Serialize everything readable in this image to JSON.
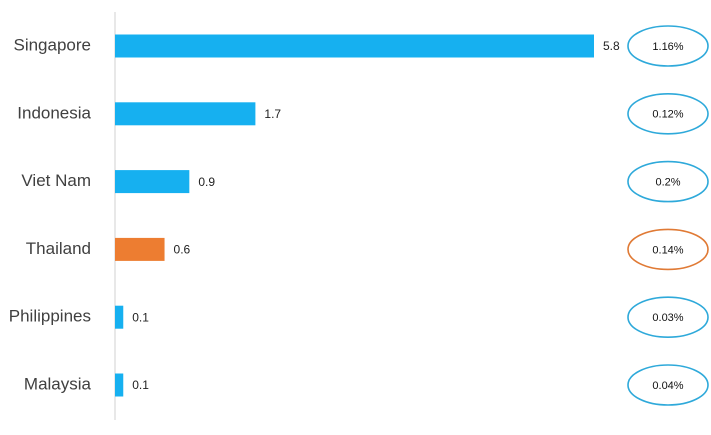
{
  "chart_data": {
    "type": "bar",
    "orientation": "horizontal",
    "categories": [
      "Singapore",
      "Indonesia",
      "Viet Nam",
      "Thailand",
      "Philippines",
      "Malaysia"
    ],
    "values": [
      5.8,
      1.7,
      0.9,
      0.6,
      0.1,
      0.1
    ],
    "colors": [
      "#16b0f0",
      "#16b0f0",
      "#16b0f0",
      "#ed7d31",
      "#16b0f0",
      "#16b0f0"
    ],
    "annotations": [
      "1.16%",
      "0.12%",
      "0.2%",
      "0.14%",
      "0.03%",
      "0.04%"
    ],
    "annotation_colors": [
      "#2ea9da",
      "#2ea9da",
      "#2ea9da",
      "#e07a35",
      "#2ea9da",
      "#2ea9da"
    ]
  }
}
